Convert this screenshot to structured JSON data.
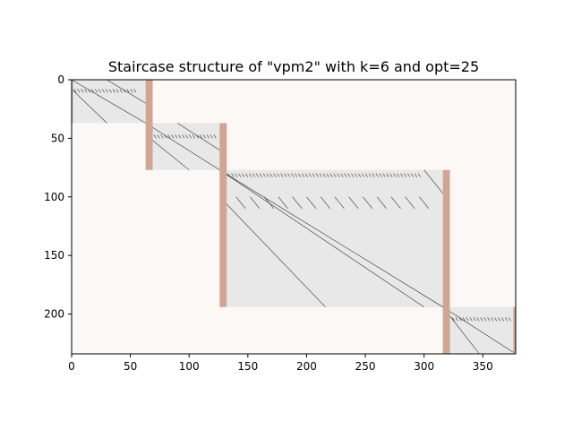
{
  "chart_data": {
    "type": "heatmap",
    "title": "Staircase structure of \"vpm2\" with k=6 and opt=25",
    "xlabel": "",
    "ylabel": "",
    "xlim": [
      0,
      378
    ],
    "ylim": [
      234,
      0
    ],
    "y_axis_inverted": true,
    "grid": false,
    "x_ticks": [
      0,
      50,
      100,
      150,
      200,
      250,
      300,
      350
    ],
    "x_tick_labels": [
      "0",
      "50",
      "100",
      "150",
      "200",
      "250",
      "300",
      "350"
    ],
    "y_ticks": [
      0,
      50,
      100,
      150,
      200
    ],
    "y_tick_labels": [
      "0",
      "50",
      "100",
      "150",
      "200"
    ],
    "colors": {
      "background": "#fcf8f5",
      "block": "#e8e8e8",
      "linking_column": "#d1a592",
      "nonzero": "#333333",
      "axes": "#000000"
    },
    "blocks": [
      {
        "col_start": 0,
        "col_end": 63,
        "row_start": 0,
        "row_end": 37
      },
      {
        "col_start": 63,
        "col_end": 126,
        "row_start": 37,
        "row_end": 77
      },
      {
        "col_start": 126,
        "col_end": 316,
        "row_start": 77,
        "row_end": 194
      },
      {
        "col_start": 316,
        "col_end": 378,
        "row_start": 194,
        "row_end": 234
      }
    ],
    "linking_columns": [
      {
        "col_start": 63,
        "col_end": 69,
        "row_start": 0,
        "row_end": 77
      },
      {
        "col_start": 126,
        "col_end": 132,
        "row_start": 37,
        "row_end": 194
      },
      {
        "col_start": 316,
        "col_end": 322,
        "row_start": 77,
        "row_end": 234
      },
      {
        "col_start": 0,
        "col_end": 1,
        "row_start": 0,
        "row_end": 37
      },
      {
        "col_start": 376,
        "col_end": 378,
        "row_start": 194,
        "row_end": 234
      }
    ],
    "nonzero_diagonals": [
      {
        "x0": 0,
        "y0": 0,
        "x1": 63,
        "y1": 37
      },
      {
        "x0": 30,
        "y0": 0,
        "x1": 63,
        "y1": 20
      },
      {
        "x0": 0,
        "y0": 8,
        "x1": 30,
        "y1": 37
      },
      {
        "x0": 63,
        "y0": 37,
        "x1": 126,
        "y1": 77
      },
      {
        "x0": 63,
        "y0": 47,
        "x1": 100,
        "y1": 77
      },
      {
        "x0": 90,
        "y0": 37,
        "x1": 126,
        "y1": 60
      },
      {
        "x0": 126,
        "y0": 77,
        "x1": 316,
        "y1": 194
      },
      {
        "x0": 126,
        "y0": 100,
        "x1": 216,
        "y1": 194
      },
      {
        "x0": 126,
        "y0": 77,
        "x1": 300,
        "y1": 194
      },
      {
        "x0": 300,
        "y0": 77,
        "x1": 316,
        "y1": 97
      },
      {
        "x0": 316,
        "y0": 194,
        "x1": 378,
        "y1": 234
      },
      {
        "x0": 316,
        "y0": 194,
        "x1": 347,
        "y1": 234
      }
    ],
    "hatch_rows": [
      {
        "x0": 2,
        "x1": 56,
        "y": 8,
        "step": 3
      },
      {
        "x0": 70,
        "x1": 124,
        "y": 47,
        "step": 3
      },
      {
        "x0": 133,
        "x1": 297,
        "y": 80,
        "step": 3
      },
      {
        "x0": 140,
        "x1": 305,
        "y": 100,
        "step": 12
      },
      {
        "x0": 324,
        "x1": 374,
        "y": 203,
        "step": 3
      }
    ]
  }
}
